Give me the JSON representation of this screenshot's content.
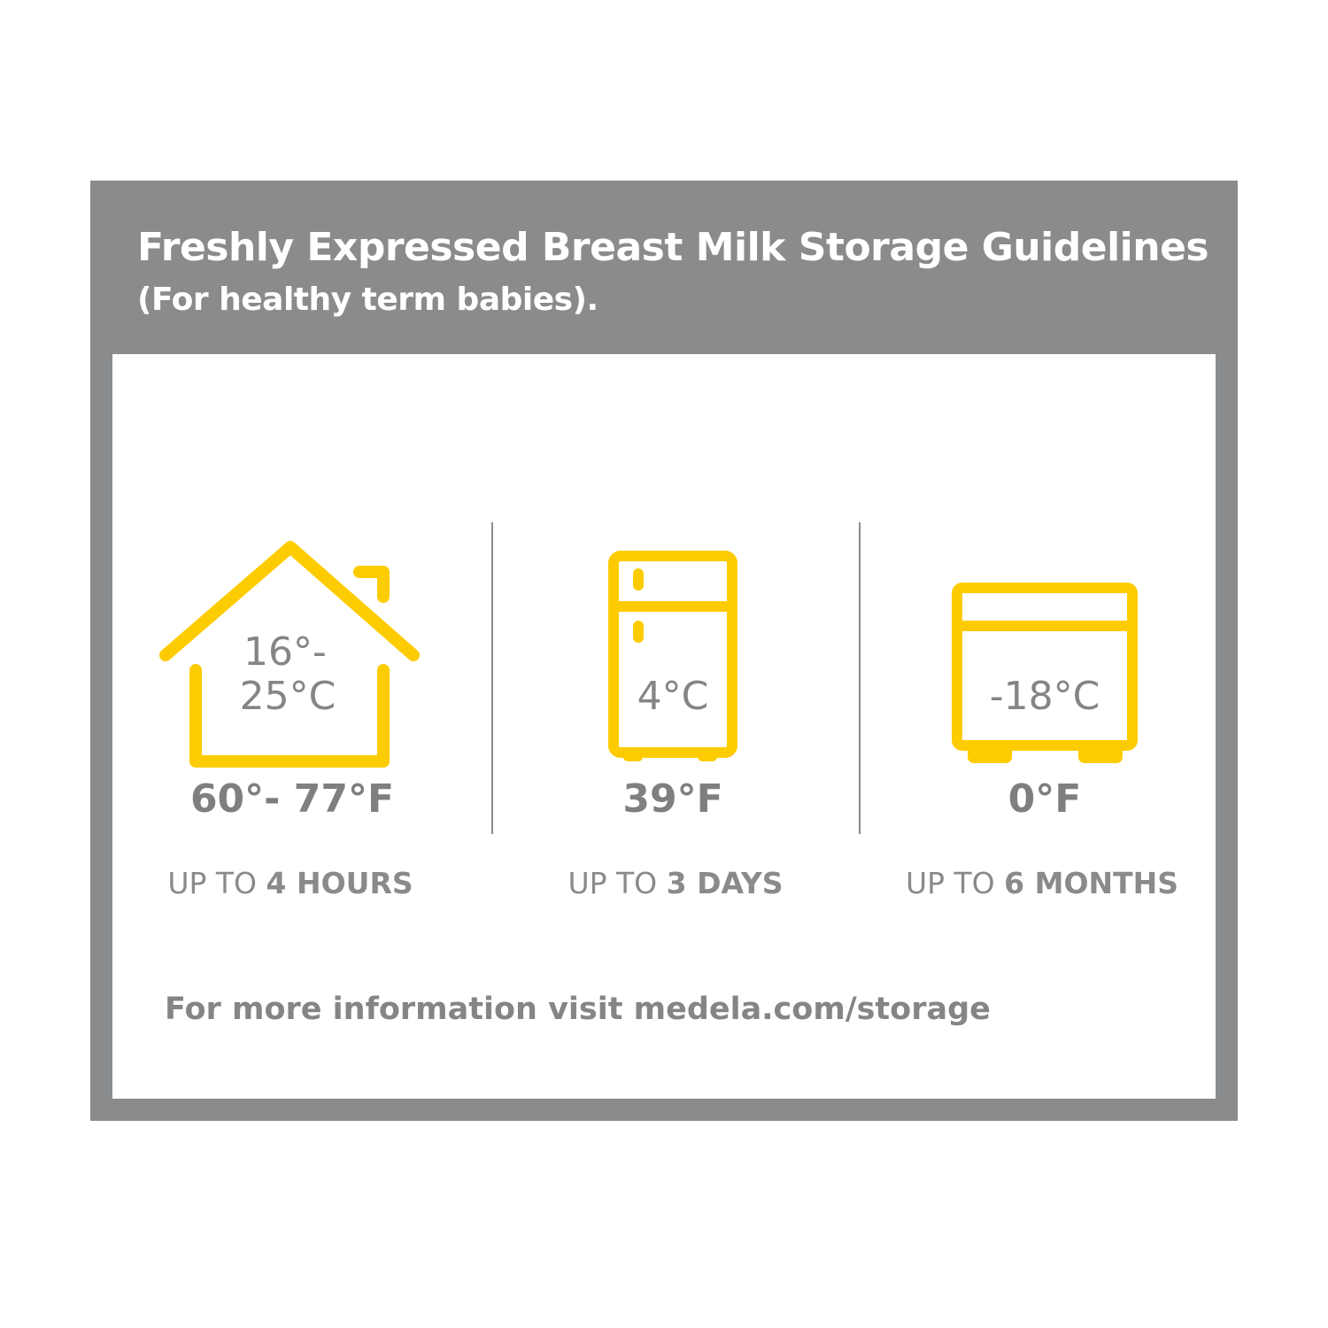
{
  "header": {
    "title": "Freshly Expressed Breast Milk Storage Guidelines",
    "subtitle": "(For healthy term babies)."
  },
  "colors": {
    "frame": "#898b8d",
    "icon_yellow": "#fdcc00",
    "text_gray": "#858585"
  },
  "columns": [
    {
      "icon": "house-icon",
      "celsius_line1": "16°-",
      "celsius_line2": "25°C",
      "fahrenheit": "60°- 77°F",
      "duration_prefix": "UP TO",
      "duration_value": "4 HOURS"
    },
    {
      "icon": "fridge-icon",
      "celsius_line1": "",
      "celsius_line2": "4°C",
      "fahrenheit": "39°F",
      "duration_prefix": "UP TO",
      "duration_value": "3 DAYS"
    },
    {
      "icon": "freezer-icon",
      "celsius_line1": "",
      "celsius_line2": "-18°C",
      "fahrenheit": "0°F",
      "duration_prefix": "UP TO",
      "duration_value": "6 MONTHS"
    }
  ],
  "footer": {
    "text": "For more information visit medela.com/storage"
  }
}
